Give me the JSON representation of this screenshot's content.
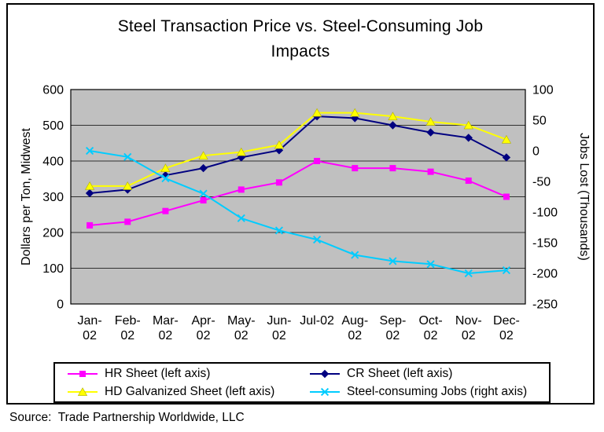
{
  "title_line1": "Steel Transaction Price vs. Steel-Consuming Job",
  "title_line2": "Impacts",
  "source": {
    "text": "Source:  Trade Partnership Worldwide, LLC"
  },
  "chart_data": {
    "type": "line",
    "title": "Steel Transaction Price vs. Steel-Consuming Job Impacts",
    "plot_bg": "#c0c0c0",
    "grid": "horizontal",
    "legend_position": "bottom",
    "categories": [
      "Jan-02",
      "Feb-02",
      "Mar-02",
      "Apr-02",
      "May-02",
      "Jun-02",
      "Jul-02",
      "Aug-02",
      "Sep-02",
      "Oct-02",
      "Nov-02",
      "Dec-02"
    ],
    "x_tick_labels": [
      [
        "Jan-",
        "02"
      ],
      [
        "Feb-",
        "02"
      ],
      [
        "Mar-",
        "02"
      ],
      [
        "Apr-",
        "02"
      ],
      [
        "May-",
        "02"
      ],
      [
        "Jun-",
        "02"
      ],
      [
        "Jul-02"
      ],
      [
        "Aug-",
        "02"
      ],
      [
        "Sep-",
        "02"
      ],
      [
        "Oct-",
        "02"
      ],
      [
        "Nov-",
        "02"
      ],
      [
        "Dec-",
        "02"
      ]
    ],
    "left_axis": {
      "label": "Dollars per Ton, Midwest",
      "min": 0,
      "max": 600,
      "step": 100
    },
    "right_axis": {
      "label": "Jobs Lost (Thousands)",
      "min": -250,
      "max": 100,
      "step": 50
    },
    "series": [
      {
        "name": "HR Sheet (left axis)",
        "axis": "left",
        "color": "#ff00ff",
        "marker": "square",
        "values": [
          220,
          230,
          260,
          290,
          320,
          340,
          400,
          380,
          380,
          370,
          345,
          300
        ]
      },
      {
        "name": "CR Sheet (left axis)",
        "axis": "left",
        "color": "#000080",
        "marker": "diamond",
        "values": [
          310,
          320,
          360,
          380,
          410,
          430,
          525,
          520,
          500,
          480,
          465,
          410
        ]
      },
      {
        "name": "HD Galvanized Sheet (left axis)",
        "axis": "left",
        "color": "#ffff00",
        "marker": "triangle",
        "values": [
          330,
          330,
          380,
          415,
          425,
          445,
          535,
          535,
          525,
          510,
          500,
          460
        ]
      },
      {
        "name": "Steel-consuming Jobs (right axis)",
        "axis": "right",
        "color": "#00ccff",
        "marker": "x",
        "values": [
          0,
          -10,
          -45,
          -70,
          -110,
          -130,
          -145,
          -170,
          -180,
          -185,
          -200,
          -195
        ]
      }
    ]
  },
  "legend": {
    "items": [
      {
        "label": "HR Sheet (left axis)"
      },
      {
        "label": "CR Sheet (left axis)"
      },
      {
        "label": "HD Galvanized Sheet (left axis)"
      },
      {
        "label": "Steel-consuming Jobs (right axis)"
      }
    ]
  }
}
